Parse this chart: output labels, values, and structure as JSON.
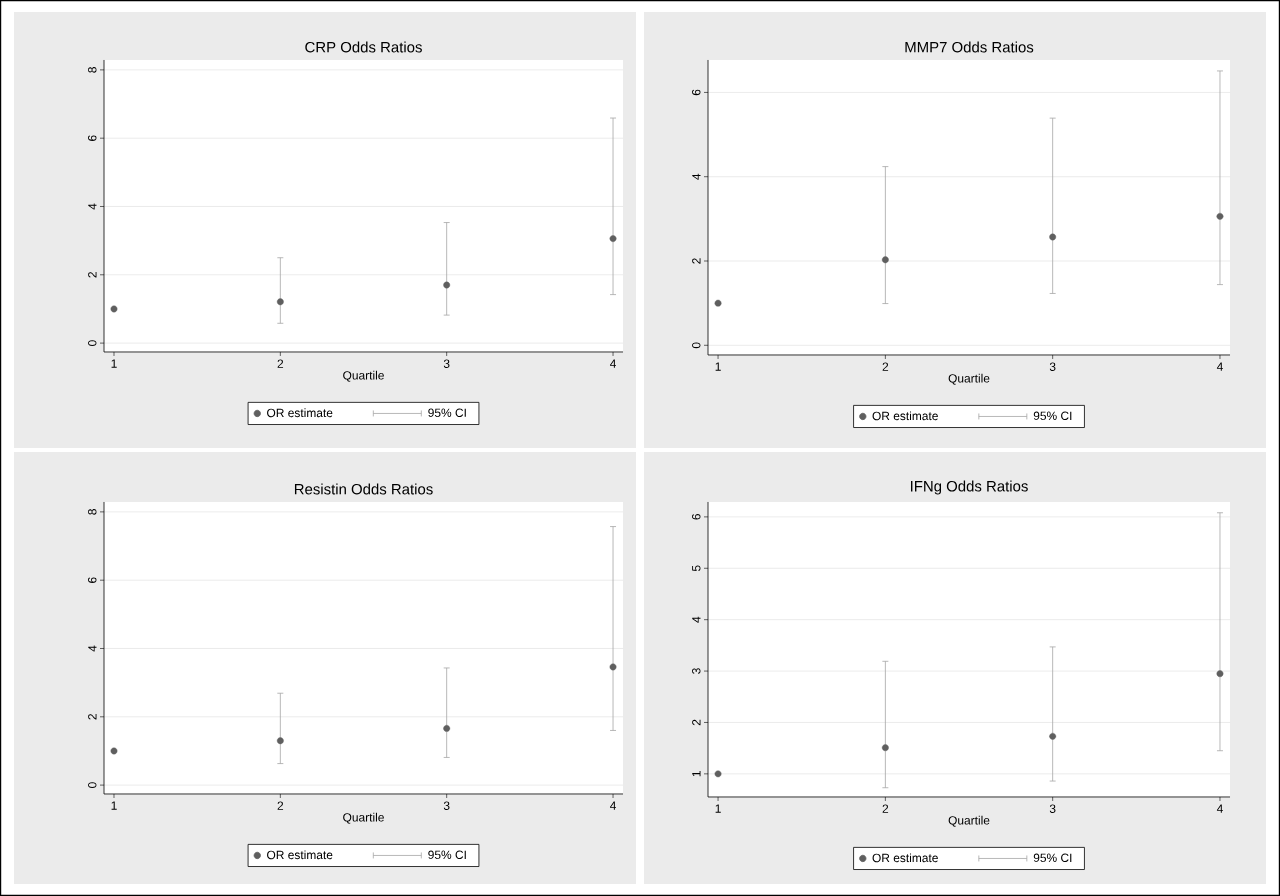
{
  "chart_data": [
    {
      "type": "scatter",
      "title": "CRP Odds Ratios",
      "xlabel": "Quartile",
      "x": [
        1,
        2,
        3,
        4
      ],
      "xlim": [
        0.94,
        4.06
      ],
      "xticks": [
        1,
        2,
        3,
        4
      ],
      "ylim": [
        -0.26,
        8.29
      ],
      "yticks": [
        0,
        2,
        4,
        6,
        8
      ],
      "grid": "y",
      "legend": "bottom",
      "annotations": [
        "95% CI"
      ],
      "series": [
        {
          "name": "OR estimate",
          "color": "#5f5f5f",
          "values": [
            1.0,
            1.21,
            1.7,
            3.06
          ],
          "errors": [
            null,
            [
              0.58,
              2.5
            ],
            [
              0.82,
              3.53
            ],
            [
              1.42,
              6.59
            ]
          ]
        }
      ]
    },
    {
      "type": "scatter",
      "title": "MMP7 Odds Ratios",
      "xlabel": "Quartile",
      "x": [
        1,
        2,
        3,
        4
      ],
      "xlim": [
        0.94,
        4.06
      ],
      "xticks": [
        1,
        2,
        3,
        4
      ],
      "ylim": [
        -0.23,
        6.77
      ],
      "yticks": [
        0,
        2,
        4,
        6
      ],
      "grid": "y",
      "legend": "bottom",
      "annotations": [
        "95% CI"
      ],
      "series": [
        {
          "name": "OR estimate",
          "color": "#5f5f5f",
          "values": [
            1.0,
            2.03,
            2.57,
            3.06
          ],
          "errors": [
            null,
            [
              0.99,
              4.24
            ],
            [
              1.23,
              5.39
            ],
            [
              1.44,
              6.51
            ]
          ]
        }
      ]
    },
    {
      "type": "scatter",
      "title": "Resistin Odds Ratios",
      "xlabel": "Quartile",
      "x": [
        1,
        2,
        3,
        4
      ],
      "xlim": [
        0.94,
        4.06
      ],
      "xticks": [
        1,
        2,
        3,
        4
      ],
      "ylim": [
        -0.26,
        8.29
      ],
      "yticks": [
        0,
        2,
        4,
        6,
        8
      ],
      "grid": "y",
      "legend": "bottom",
      "annotations": [
        "95% CI"
      ],
      "series": [
        {
          "name": "OR estimate",
          "color": "#5f5f5f",
          "values": [
            1.0,
            1.3,
            1.66,
            3.46
          ],
          "errors": [
            null,
            [
              0.63,
              2.69
            ],
            [
              0.81,
              3.43
            ],
            [
              1.6,
              7.57
            ]
          ]
        }
      ]
    },
    {
      "type": "scatter",
      "title": "IFNg Odds Ratios",
      "xlabel": "Quartile",
      "x": [
        1,
        2,
        3,
        4
      ],
      "xlim": [
        0.94,
        4.06
      ],
      "xticks": [
        1,
        2,
        3,
        4
      ],
      "ylim": [
        0.55,
        6.29
      ],
      "yticks": [
        1,
        2,
        3,
        4,
        5,
        6
      ],
      "grid": "y",
      "legend": "bottom",
      "annotations": [
        "95% CI"
      ],
      "series": [
        {
          "name": "OR estimate",
          "color": "#5f5f5f",
          "values": [
            1.0,
            1.51,
            1.73,
            2.95
          ],
          "errors": [
            null,
            [
              0.73,
              3.19
            ],
            [
              0.86,
              3.47
            ],
            [
              1.45,
              6.08
            ]
          ]
        }
      ]
    }
  ]
}
